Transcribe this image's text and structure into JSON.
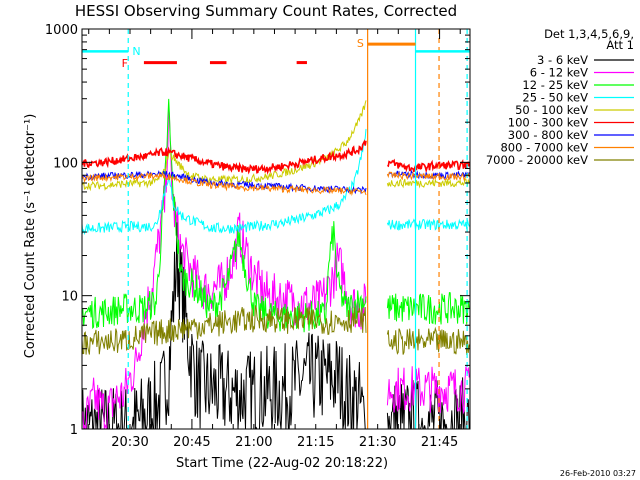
{
  "chart_data": {
    "type": "line",
    "title": "HESSI Observing Summary Count Rates, Corrected",
    "xlabel": "Start Time (22-Aug-02 20:18:22)",
    "ylabel": "Corrected Count Rate (s⁻¹ detector⁻¹)",
    "yscale": "log",
    "ylim": [
      1,
      1000
    ],
    "xlim_minutes_since_20_18_22": [
      0,
      94
    ],
    "x_ticks": [
      "20:30",
      "20:45",
      "21:00",
      "21:15",
      "21:30",
      "21:45"
    ],
    "y_ticks": [
      "1",
      "10",
      "100",
      "1000"
    ],
    "legend_title": [
      "Det 1,3,4,5,6,9,",
      "Att 1"
    ],
    "legend_placement": "right",
    "flag_labels": [
      "N",
      "F",
      "S"
    ],
    "footer_date": "26-Feb-2010 03:27",
    "series": [
      {
        "name": "3 - 6 keV",
        "color": "#000000",
        "points": [
          [
            12,
            1
          ],
          [
            19,
            1.6
          ],
          [
            21,
            2.8
          ],
          [
            22,
            8
          ],
          [
            23,
            20
          ],
          [
            24,
            12
          ],
          [
            26,
            4
          ],
          [
            28,
            2.2
          ],
          [
            30,
            2
          ],
          [
            40,
            1.8
          ],
          [
            50,
            2
          ],
          [
            54,
            2.4
          ],
          [
            62,
            2.4
          ],
          [
            64,
            1.8
          ],
          [
            67,
            1.6
          ],
          [
            69,
            1
          ]
        ]
      },
      {
        "name": "6 - 12 keV",
        "color": "#ff00ff",
        "points": [
          [
            0,
            1
          ],
          [
            3,
            1.7
          ],
          [
            6,
            1.3
          ],
          [
            8,
            1.7
          ],
          [
            10,
            1.8
          ],
          [
            13,
            3
          ],
          [
            15,
            6.5
          ],
          [
            17,
            12
          ],
          [
            20,
            50
          ],
          [
            21,
            200
          ],
          [
            22,
            50
          ],
          [
            24,
            22
          ],
          [
            27,
            14
          ],
          [
            30,
            11
          ],
          [
            34,
            12
          ],
          [
            37,
            20
          ],
          [
            38,
            30
          ],
          [
            40,
            20
          ],
          [
            42,
            13
          ],
          [
            45,
            10
          ],
          [
            52,
            9
          ],
          [
            55,
            8.5
          ],
          [
            58,
            9
          ],
          [
            61,
            14
          ],
          [
            62,
            18
          ],
          [
            63,
            15
          ],
          [
            65,
            9
          ],
          [
            67,
            8
          ],
          [
            69,
            8.5
          ]
        ]
      },
      {
        "name": "12 - 25 keV",
        "color": "#00ff00",
        "points": [
          [
            0,
            7.5
          ],
          [
            5,
            7.5
          ],
          [
            10,
            8
          ],
          [
            15,
            8
          ],
          [
            18,
            9
          ],
          [
            20,
            60
          ],
          [
            21,
            260
          ],
          [
            22,
            60
          ],
          [
            24,
            14
          ],
          [
            27,
            12
          ],
          [
            29,
            10
          ],
          [
            31,
            8
          ],
          [
            33,
            9
          ],
          [
            35,
            12
          ],
          [
            38,
            28
          ],
          [
            40,
            14
          ],
          [
            42,
            8
          ],
          [
            44,
            7.5
          ],
          [
            47,
            7
          ],
          [
            52,
            7
          ],
          [
            56,
            7
          ],
          [
            59,
            7
          ],
          [
            60,
            20
          ],
          [
            61,
            30
          ],
          [
            62,
            12
          ],
          [
            64,
            8
          ],
          [
            67,
            9
          ],
          [
            69,
            9.5
          ]
        ]
      },
      {
        "name": "25 - 50 keV",
        "color": "#00ffff",
        "points": [
          [
            0,
            32
          ],
          [
            5,
            32
          ],
          [
            10,
            33
          ],
          [
            16,
            33
          ],
          [
            18,
            34
          ],
          [
            20,
            60
          ],
          [
            21,
            80
          ],
          [
            22,
            50
          ],
          [
            24,
            40
          ],
          [
            28,
            35
          ],
          [
            32,
            32
          ],
          [
            38,
            32
          ],
          [
            42,
            33
          ],
          [
            48,
            35
          ],
          [
            52,
            37
          ],
          [
            56,
            40
          ],
          [
            60,
            44
          ],
          [
            63,
            50
          ],
          [
            66,
            70
          ],
          [
            68,
            120
          ],
          [
            69,
            190
          ]
        ]
      },
      {
        "name": "50 - 100 keV",
        "color": "#cccc00",
        "points": [
          [
            0,
            67
          ],
          [
            5,
            67
          ],
          [
            10,
            69
          ],
          [
            16,
            70
          ],
          [
            18,
            72
          ],
          [
            20,
            85
          ],
          [
            21,
            120
          ],
          [
            23,
            100
          ],
          [
            26,
            80
          ],
          [
            30,
            75
          ],
          [
            35,
            74
          ],
          [
            40,
            75
          ],
          [
            45,
            78
          ],
          [
            50,
            85
          ],
          [
            55,
            95
          ],
          [
            60,
            110
          ],
          [
            64,
            140
          ],
          [
            67,
            200
          ],
          [
            69,
            290
          ]
        ]
      },
      {
        "name": "100 - 300 keV",
        "color": "#ff0000",
        "points": [
          [
            0,
            98
          ],
          [
            5,
            100
          ],
          [
            10,
            105
          ],
          [
            16,
            112
          ],
          [
            20,
            120
          ],
          [
            24,
            112
          ],
          [
            28,
            103
          ],
          [
            32,
            96
          ],
          [
            36,
            91
          ],
          [
            40,
            89
          ],
          [
            44,
            90
          ],
          [
            48,
            93
          ],
          [
            52,
            98
          ],
          [
            56,
            104
          ],
          [
            60,
            110
          ],
          [
            64,
            116
          ],
          [
            67,
            125
          ],
          [
            69,
            145
          ]
        ]
      },
      {
        "name": "300 - 800 keV",
        "color": "#0000ff",
        "points": [
          [
            0,
            78
          ],
          [
            5,
            79
          ],
          [
            10,
            80
          ],
          [
            16,
            81
          ],
          [
            20,
            82
          ],
          [
            24,
            78
          ],
          [
            28,
            73
          ],
          [
            32,
            70
          ],
          [
            38,
            68
          ],
          [
            44,
            67
          ],
          [
            50,
            65
          ],
          [
            56,
            64
          ],
          [
            62,
            63
          ],
          [
            66,
            62
          ],
          [
            69,
            62
          ]
        ]
      },
      {
        "name": "800 - 7000 keV",
        "color": "#ff8000",
        "points": [
          [
            0,
            76
          ],
          [
            5,
            77
          ],
          [
            10,
            78
          ],
          [
            16,
            79
          ],
          [
            20,
            79
          ],
          [
            24,
            75
          ],
          [
            28,
            70
          ],
          [
            32,
            67
          ],
          [
            38,
            65
          ],
          [
            44,
            64
          ],
          [
            50,
            63
          ],
          [
            56,
            62
          ],
          [
            62,
            61
          ],
          [
            66,
            61
          ],
          [
            69,
            60
          ]
        ]
      },
      {
        "name": "7000 - 20000 keV",
        "color": "#808000",
        "points": [
          [
            0,
            4.4
          ],
          [
            10,
            4.6
          ],
          [
            15,
            5
          ],
          [
            20,
            5.4
          ],
          [
            25,
            5.8
          ],
          [
            30,
            6
          ],
          [
            35,
            6.3
          ],
          [
            40,
            6.6
          ],
          [
            45,
            6.7
          ],
          [
            50,
            6.5
          ],
          [
            55,
            6.6
          ],
          [
            60,
            6.4
          ],
          [
            65,
            6.6
          ],
          [
            69,
            6.6
          ]
        ]
      }
    ]
  }
}
